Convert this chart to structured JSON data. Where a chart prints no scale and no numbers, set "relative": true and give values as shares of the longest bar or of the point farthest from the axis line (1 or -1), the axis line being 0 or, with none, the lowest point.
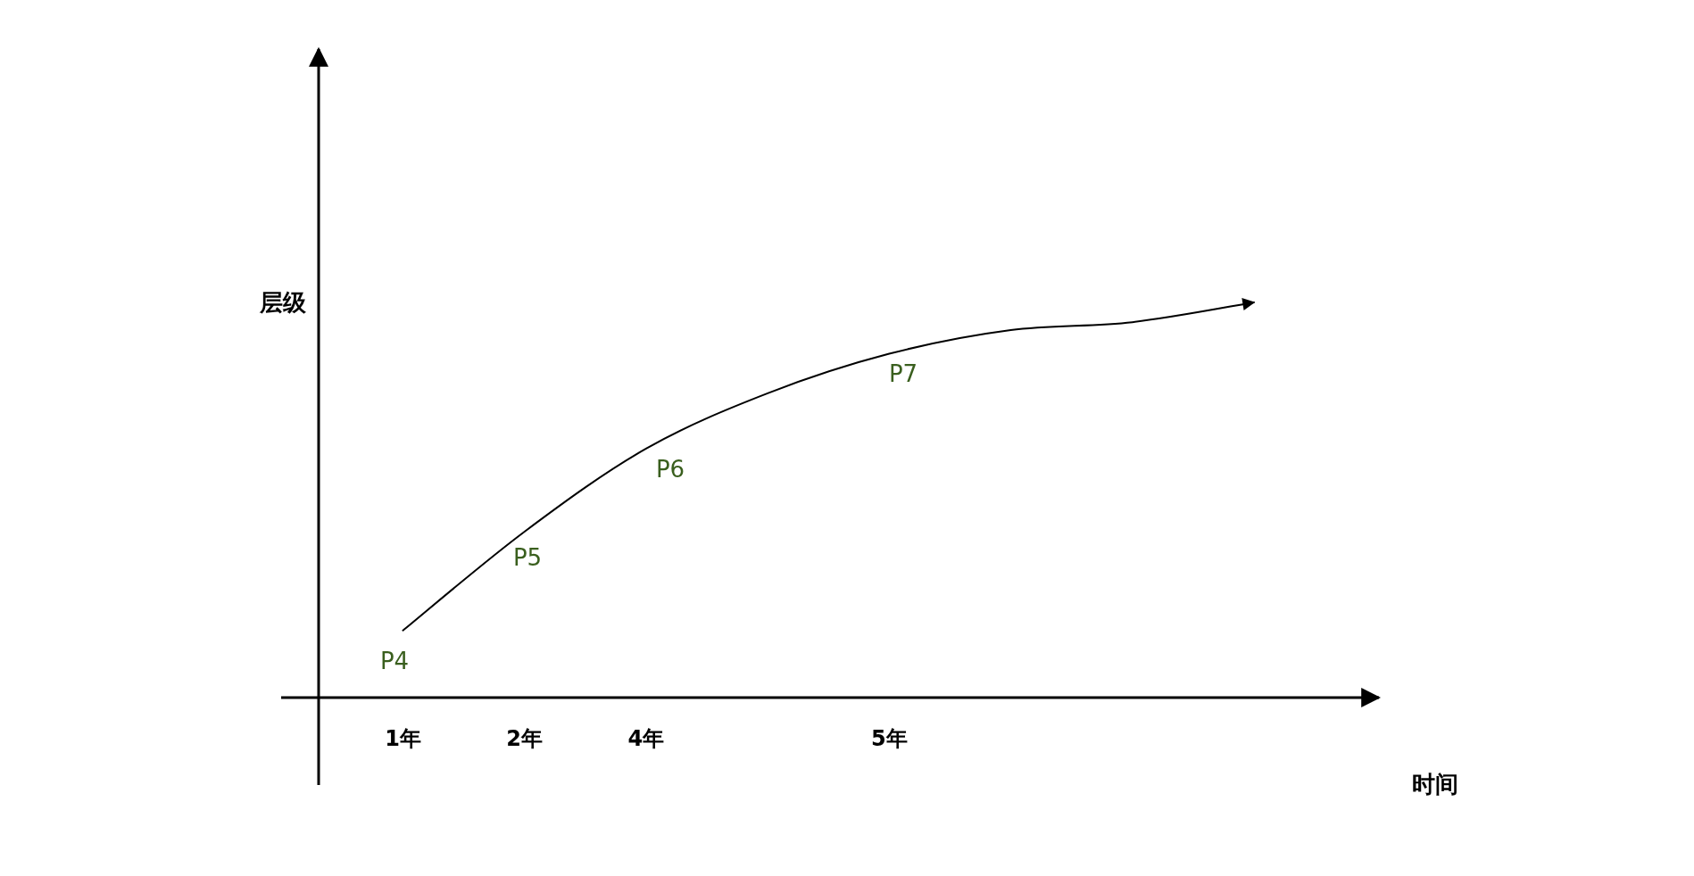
{
  "chart_data": {
    "type": "line",
    "relative": true,
    "xlabel": "时间",
    "ylabel": "层级",
    "categories": [
      "1年",
      "2年",
      "4年",
      null,
      "5年",
      null,
      null,
      null
    ],
    "values": [
      0.17,
      0.42,
      0.63,
      0.77,
      0.87,
      0.93,
      0.95,
      1
    ],
    "color": "#000000",
    "annotations": [
      "P4",
      "P5",
      "P6",
      "P7"
    ],
    "marker": "none",
    "line_style": "solid"
  }
}
